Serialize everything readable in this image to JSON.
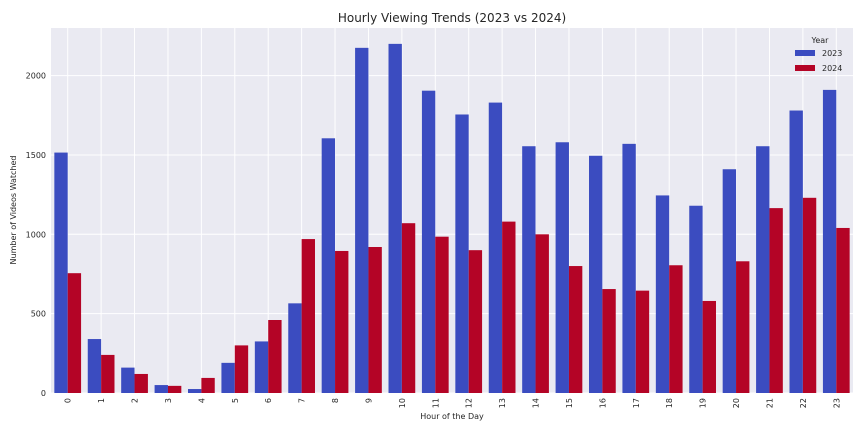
{
  "chart_data": {
    "type": "bar",
    "title": "Hourly Viewing Trends (2023 vs 2024)",
    "xlabel": "Hour of the Day",
    "ylabel": "Number of Videos Watched",
    "categories": [
      "0",
      "1",
      "2",
      "3",
      "4",
      "5",
      "6",
      "7",
      "8",
      "9",
      "10",
      "11",
      "12",
      "13",
      "14",
      "15",
      "16",
      "17",
      "18",
      "19",
      "20",
      "21",
      "22",
      "23"
    ],
    "ylim": [
      0,
      2300
    ],
    "yticks": [
      0,
      500,
      1000,
      1500,
      2000
    ],
    "grid": true,
    "legend": {
      "title": "Year",
      "placement": "top-right"
    },
    "series": [
      {
        "name": "2023",
        "color": "#3b4cc0",
        "values": [
          1515,
          340,
          160,
          50,
          25,
          190,
          325,
          565,
          1605,
          2175,
          2200,
          1905,
          1755,
          1830,
          1555,
          1580,
          1495,
          1570,
          1245,
          1180,
          1410,
          1555,
          1780,
          1910
        ]
      },
      {
        "name": "2024",
        "color": "#b40426",
        "values": [
          755,
          240,
          120,
          45,
          95,
          300,
          460,
          970,
          895,
          920,
          1070,
          985,
          900,
          1080,
          1000,
          800,
          655,
          645,
          805,
          580,
          830,
          1165,
          1230,
          1040
        ]
      }
    ]
  }
}
